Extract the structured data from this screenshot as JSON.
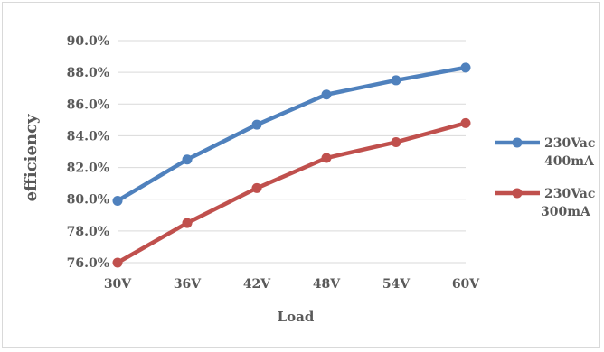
{
  "chart_data": {
    "type": "line",
    "categories": [
      "30V",
      "36V",
      "42V",
      "48V",
      "54V",
      "60V"
    ],
    "series": [
      {
        "name": "230Vac 400mA",
        "name_lines": [
          "230Vac",
          "400mA"
        ],
        "color": "#4f81bd",
        "values": [
          79.9,
          82.5,
          84.7,
          86.6,
          87.5,
          88.3
        ]
      },
      {
        "name": "230Vac 300mA",
        "name_lines": [
          "230Vac",
          "300mA"
        ],
        "color": "#c0504d",
        "values": [
          76.0,
          78.5,
          80.7,
          82.6,
          83.6,
          84.8
        ]
      }
    ],
    "xlabel": "Load",
    "ylabel": "efficiency",
    "ylim": [
      76,
      90
    ],
    "ytick_labels": [
      "76.0%",
      "78.0%",
      "80.0%",
      "82.0%",
      "84.0%",
      "86.0%",
      "88.0%",
      "90.0%"
    ],
    "grid": true,
    "legend_position": "right"
  }
}
